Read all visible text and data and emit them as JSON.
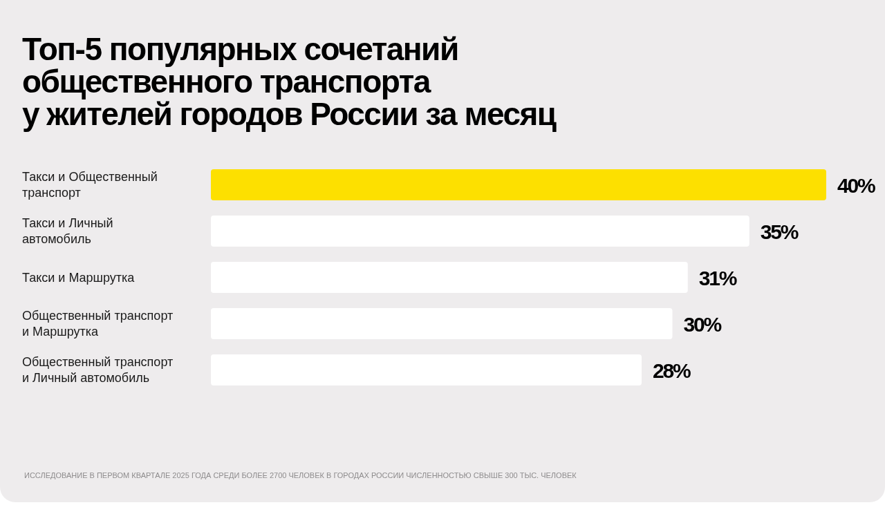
{
  "chart_data": {
    "type": "bar",
    "orientation": "horizontal",
    "title": "Топ-5 популярных сочетаний\nобщественного транспорта\nу жителей городов России за месяц",
    "categories": [
      "Такси и Общественный\nтранспорт",
      "Такси и Личный\nавтомобиль",
      "Такси и Маршрутка",
      "Общественный транспорт\nи Маршрутка",
      "Общественный транспорт\nи Личный автомобиль"
    ],
    "values": [
      40,
      35,
      31,
      30,
      28
    ],
    "colors": [
      "#fde000",
      "#ffffff",
      "#ffffff",
      "#ffffff",
      "#ffffff"
    ],
    "value_labels": [
      "40%",
      "35%",
      "31%",
      "30%",
      "28%"
    ],
    "xlim": [
      0,
      40
    ],
    "annotations": [
      "ИССЛЕДОВАНИЕ В ПЕРВОМ КВАРТАЛЕ 2025 ГОДА СРЕДИ БОЛЕЕ 2700 ЧЕЛОВЕК В ГОРОДАХ РОССИИ ЧИСЛЕННОСТЬЮ СВЫШЕ 300 ТЫС. ЧЕЛОВЕК"
    ]
  }
}
